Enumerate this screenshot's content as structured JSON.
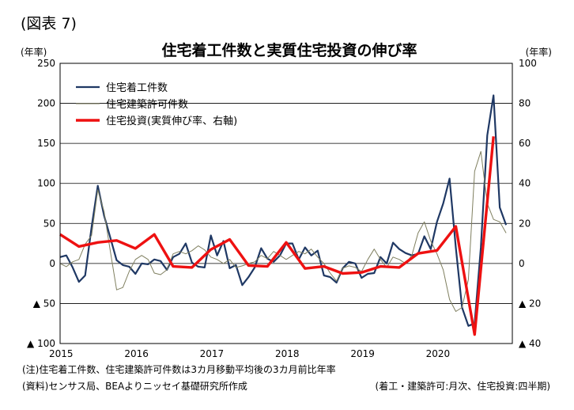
{
  "figure_label": "(図表 7)",
  "chart_data": {
    "type": "line",
    "title": "住宅着工件数と実質住宅投資の伸び率",
    "left_axis_unit": "(年率)",
    "right_axis_unit": "(年率)",
    "left_axis": {
      "ylim": [
        -100,
        250
      ],
      "ticks": [
        250,
        200,
        150,
        100,
        50,
        0,
        -50,
        -100
      ],
      "tick_labels": [
        "250",
        "200",
        "150",
        "100",
        "50",
        "0",
        "▲ 50",
        "▲ 100"
      ]
    },
    "right_axis": {
      "ylim": [
        -40,
        100
      ],
      "ticks": [
        100,
        80,
        60,
        40,
        20,
        0,
        -20,
        -40
      ],
      "tick_labels": [
        "100",
        "80",
        "60",
        "40",
        "20",
        "0",
        "▲ 20",
        "▲ 40"
      ]
    },
    "x_axis": {
      "range": [
        2015.0,
        2021.0
      ],
      "tick_labels": [
        "2015",
        "2016",
        "2017",
        "2018",
        "2019",
        "2020"
      ]
    },
    "grid": "horizontal",
    "legend_position": "top-left",
    "series": [
      {
        "name": "住宅着工件数",
        "axis": "left",
        "frequency": "monthly",
        "color": "#1f3864",
        "x": [
          2015.0,
          2015.083,
          2015.167,
          2015.25,
          2015.333,
          2015.417,
          2015.5,
          2015.583,
          2015.667,
          2015.75,
          2015.833,
          2015.917,
          2016.0,
          2016.083,
          2016.167,
          2016.25,
          2016.333,
          2016.417,
          2016.5,
          2016.583,
          2016.667,
          2016.75,
          2016.833,
          2016.917,
          2017.0,
          2017.083,
          2017.167,
          2017.25,
          2017.333,
          2017.417,
          2017.5,
          2017.583,
          2017.667,
          2017.75,
          2017.833,
          2017.917,
          2018.0,
          2018.083,
          2018.167,
          2018.25,
          2018.333,
          2018.417,
          2018.5,
          2018.583,
          2018.667,
          2018.75,
          2018.833,
          2018.917,
          2019.0,
          2019.083,
          2019.167,
          2019.25,
          2019.333,
          2019.417,
          2019.5,
          2019.583,
          2019.667,
          2019.75,
          2019.833,
          2019.917,
          2020.0,
          2020.083,
          2020.167,
          2020.25,
          2020.333,
          2020.417,
          2020.5,
          2020.583,
          2020.667,
          2020.75,
          2020.833,
          2020.917
        ],
        "values": [
          8,
          10,
          -5,
          -23,
          -15,
          45,
          97,
          60,
          32,
          4,
          -2,
          -4,
          -13,
          0,
          -1,
          5,
          3,
          -8,
          8,
          12,
          25,
          1,
          -4,
          -5,
          35,
          10,
          28,
          -6,
          -2,
          -27,
          -17,
          -5,
          19,
          6,
          2,
          10,
          25,
          25,
          5,
          20,
          10,
          16,
          -15,
          -17,
          -24,
          -6,
          2,
          0,
          -18,
          -13,
          -12,
          8,
          0,
          26,
          18,
          13,
          10,
          12,
          34,
          18,
          52,
          75,
          106,
          20,
          -55,
          -78,
          -75,
          20,
          160,
          210,
          70,
          48
        ]
      },
      {
        "name": "住宅建築許可件数",
        "axis": "left",
        "frequency": "monthly",
        "color": "#7f7f5f",
        "x": [
          2015.0,
          2015.083,
          2015.167,
          2015.25,
          2015.333,
          2015.417,
          2015.5,
          2015.583,
          2015.667,
          2015.75,
          2015.833,
          2015.917,
          2016.0,
          2016.083,
          2016.167,
          2016.25,
          2016.333,
          2016.417,
          2016.5,
          2016.583,
          2016.667,
          2016.75,
          2016.833,
          2016.917,
          2017.0,
          2017.083,
          2017.167,
          2017.25,
          2017.333,
          2017.417,
          2017.5,
          2017.583,
          2017.667,
          2017.75,
          2017.833,
          2017.917,
          2018.0,
          2018.083,
          2018.167,
          2018.25,
          2018.333,
          2018.417,
          2018.5,
          2018.583,
          2018.667,
          2018.75,
          2018.833,
          2018.917,
          2019.0,
          2019.083,
          2019.167,
          2019.25,
          2019.333,
          2019.417,
          2019.5,
          2019.583,
          2019.667,
          2019.75,
          2019.833,
          2019.917,
          2020.0,
          2020.083,
          2020.167,
          2020.25,
          2020.333,
          2020.417,
          2020.5,
          2020.583,
          2020.667,
          2020.75,
          2020.833,
          2020.917
        ],
        "values": [
          0,
          -4,
          2,
          5,
          24,
          35,
          92,
          65,
          15,
          -33,
          -30,
          -10,
          5,
          10,
          5,
          -12,
          -14,
          -8,
          12,
          15,
          12,
          16,
          22,
          17,
          8,
          5,
          0,
          5,
          -5,
          -3,
          0,
          2,
          10,
          6,
          15,
          10,
          5,
          10,
          15,
          12,
          18,
          8,
          0,
          -12,
          -22,
          -6,
          -3,
          -5,
          -10,
          5,
          18,
          5,
          -5,
          8,
          5,
          0,
          10,
          38,
          52,
          28,
          12,
          -8,
          -45,
          -60,
          -55,
          -20,
          115,
          140,
          75,
          55,
          52,
          38
        ],
        "note": "approximate reading"
      },
      {
        "name": "住宅投資(実質伸び率、右軸)",
        "axis": "right",
        "frequency": "quarterly",
        "color": "#ee1111",
        "x": [
          2015.0,
          2015.25,
          2015.5,
          2015.75,
          2016.0,
          2016.25,
          2016.5,
          2016.75,
          2017.0,
          2017.25,
          2017.5,
          2017.75,
          2018.0,
          2018.25,
          2018.5,
          2018.75,
          2019.0,
          2019.25,
          2019.5,
          2019.75,
          2020.0,
          2020.25,
          2020.5,
          2020.75
        ],
        "values": [
          14.5,
          8.5,
          10.5,
          11.5,
          7.5,
          14.5,
          -1.5,
          -2.0,
          7.0,
          12.0,
          -1.0,
          -1.5,
          10.5,
          -2.5,
          -1.5,
          -5.0,
          -4.5,
          -1.5,
          -2.0,
          5.0,
          6.5,
          18.5,
          -35.5,
          63.5
        ]
      }
    ]
  },
  "notes": {
    "note1": "(注)住宅着工件数、住宅建築許可件数は3カ月移動平均後の3カ月前比年率",
    "source": "(資料)センサス局、BEAよりニッセイ基礎研究所作成",
    "frequency": "(着工・建築許可:月次、住宅投資:四半期)"
  }
}
